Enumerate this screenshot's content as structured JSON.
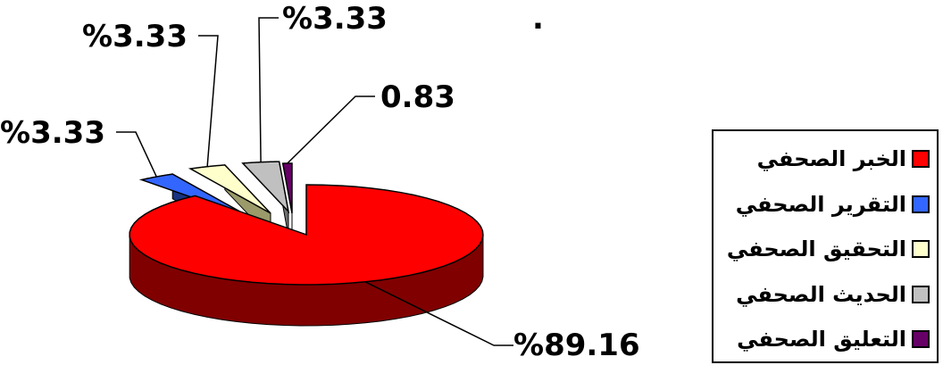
{
  "chart_data": {
    "type": "pie",
    "title": "",
    "slices": [
      {
        "name": "الخبر الصحفي",
        "value": 89.16,
        "label": "%89.16",
        "color": "#ff0000",
        "side": "#800000"
      },
      {
        "name": "التقرير الصحفي",
        "value": 3.33,
        "label": "%3.33",
        "color": "#3366ff",
        "side": "#1a3380"
      },
      {
        "name": "التحقيق الصحفي",
        "value": 3.33,
        "label": "%3.33",
        "color": "#ffffcc",
        "side": "#9a9a6a"
      },
      {
        "name": "الحديث الصحفي",
        "value": 3.33,
        "label": "%3.33",
        "color": "#c0c0c0",
        "side": "#707070"
      },
      {
        "name": "التعليق الصحفي",
        "value": 0.83,
        "label": "0.83",
        "color": "#660066",
        "side": "#330033"
      }
    ],
    "legend_position": "right",
    "dot": "."
  }
}
